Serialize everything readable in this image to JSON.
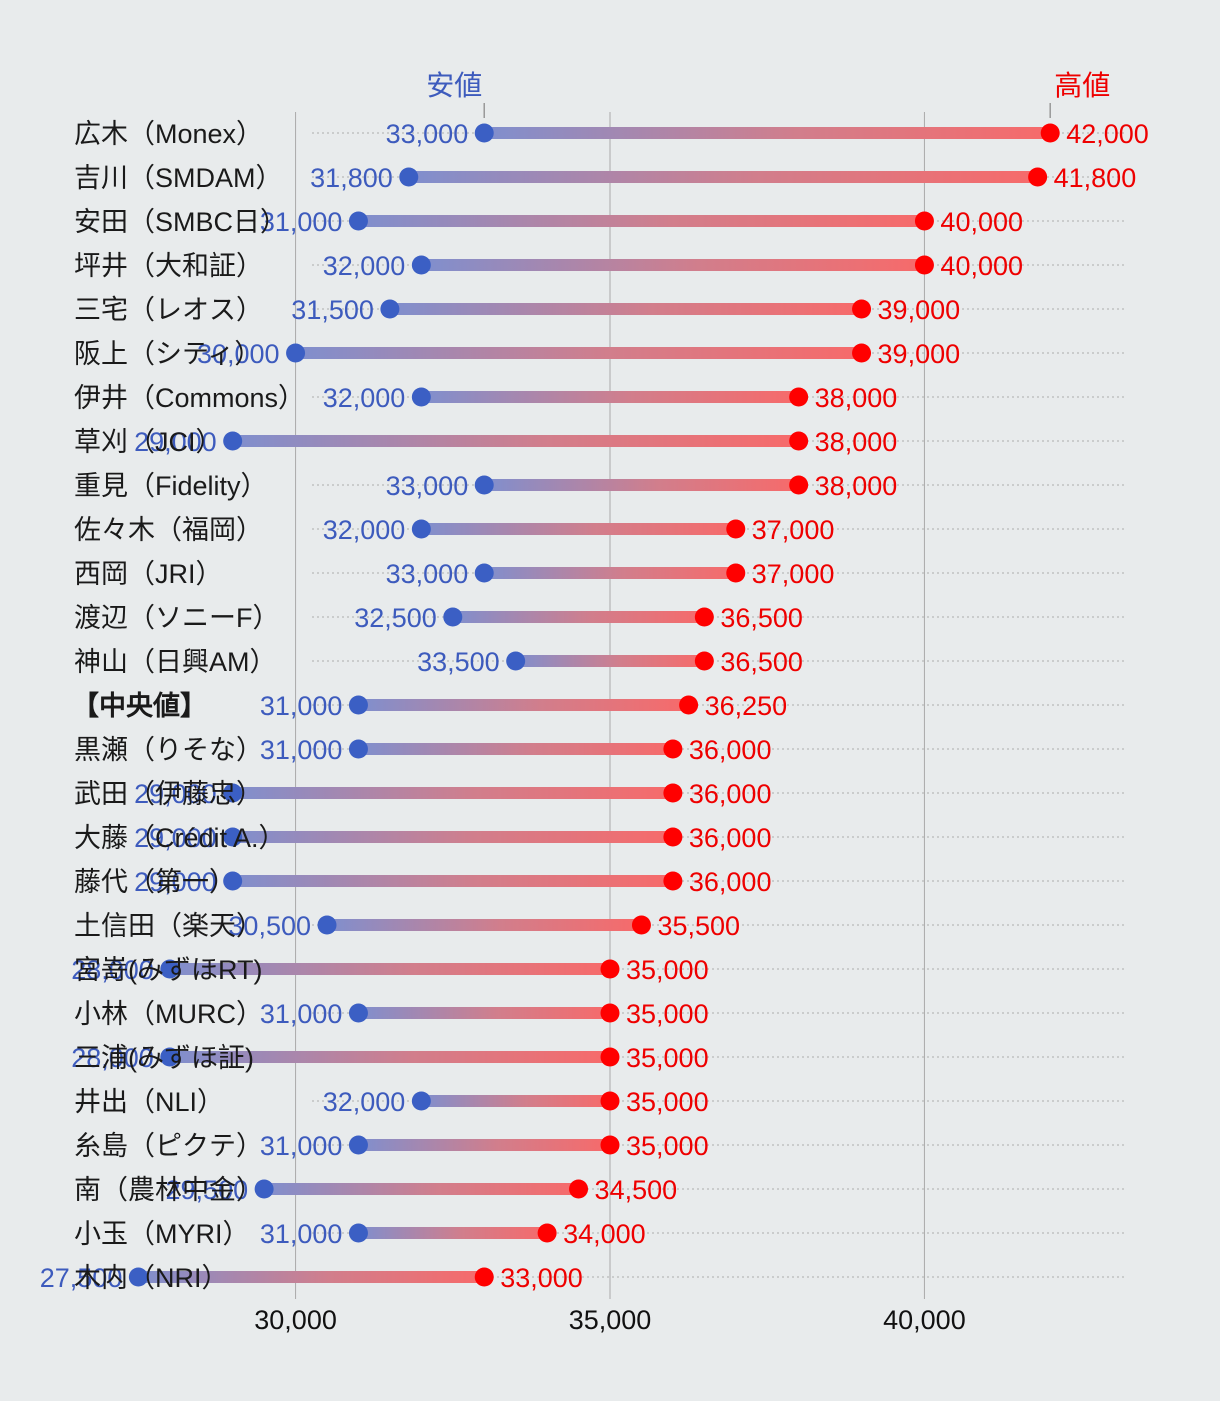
{
  "chart_data": {
    "type": "dumbbell",
    "title": "",
    "xlabel": "",
    "ylabel": "",
    "xlim": [
      25300,
      44700
    ],
    "xticks": [
      30000,
      35000,
      40000
    ],
    "xtick_labels": [
      "30,000",
      "35,000",
      "40,000"
    ],
    "grid": true,
    "legend": {
      "low": "安値",
      "high": "高値",
      "position": "top"
    },
    "colors": {
      "low": "#3b5fc4",
      "high": "#ff0000",
      "background": "#e8ebec",
      "grid": "#aaaaaa"
    },
    "rows": [
      {
        "label": "広木（Monex）",
        "low": 33000,
        "high": 42000,
        "low_label": "33,000",
        "high_label": "42,000"
      },
      {
        "label": "吉川（SMDAM）",
        "low": 31800,
        "high": 41800,
        "low_label": "31,800",
        "high_label": "41,800"
      },
      {
        "label": "安田（SMBC日）",
        "low": 31000,
        "high": 40000,
        "low_label": "31,000",
        "high_label": "40,000"
      },
      {
        "label": "坪井（大和証）",
        "low": 32000,
        "high": 40000,
        "low_label": "32,000",
        "high_label": "40,000"
      },
      {
        "label": "三宅（レオス）",
        "low": 31500,
        "high": 39000,
        "low_label": "31,500",
        "high_label": "39,000"
      },
      {
        "label": "阪上（シティ）",
        "low": 30000,
        "high": 39000,
        "low_label": "30,000",
        "high_label": "39,000"
      },
      {
        "label": "伊井（Commons）",
        "low": 32000,
        "high": 38000,
        "low_label": "32,000",
        "high_label": "38,000"
      },
      {
        "label": "草刈（JCI）",
        "low": 29000,
        "high": 38000,
        "low_label": "29,000",
        "high_label": "38,000"
      },
      {
        "label": "重見（Fidelity）",
        "low": 33000,
        "high": 38000,
        "low_label": "33,000",
        "high_label": "38,000"
      },
      {
        "label": "佐々木（福岡）",
        "low": 32000,
        "high": 37000,
        "low_label": "32,000",
        "high_label": "37,000"
      },
      {
        "label": "西岡（JRI）",
        "low": 33000,
        "high": 37000,
        "low_label": "33,000",
        "high_label": "37,000"
      },
      {
        "label": "渡辺（ソニーF）",
        "low": 32500,
        "high": 36500,
        "low_label": "32,500",
        "high_label": "36,500"
      },
      {
        "label": "神山（日興AM）",
        "low": 33500,
        "high": 36500,
        "low_label": "33,500",
        "high_label": "36,500"
      },
      {
        "label": "【中央値】",
        "low": 31000,
        "high": 36250,
        "low_label": "31,000",
        "high_label": "36,250",
        "median": true
      },
      {
        "label": "黒瀬（りそな）",
        "low": 31000,
        "high": 36000,
        "low_label": "31,000",
        "high_label": "36,000"
      },
      {
        "label": "武田（伊藤忠）",
        "low": 29000,
        "high": 36000,
        "low_label": "29,000",
        "high_label": "36,000"
      },
      {
        "label": "大藤（Crédit A.）",
        "low": 29000,
        "high": 36000,
        "low_label": "29,000",
        "high_label": "36,000"
      },
      {
        "label": "藤代（第一）",
        "low": 29000,
        "high": 36000,
        "low_label": "29,000",
        "high_label": "36,000"
      },
      {
        "label": "土信田（楽天）",
        "low": 30500,
        "high": 35500,
        "low_label": "30,500",
        "high_label": "35,500"
      },
      {
        "label": "宮嵜(みずほRT)",
        "low": 28000,
        "high": 35000,
        "low_label": "28,000",
        "high_label": "35,000"
      },
      {
        "label": "小林（MURC）",
        "low": 31000,
        "high": 35000,
        "low_label": "31,000",
        "high_label": "35,000"
      },
      {
        "label": "三浦(みずほ証)",
        "low": 28000,
        "high": 35000,
        "low_label": "28,000",
        "high_label": "35,000"
      },
      {
        "label": "井出（NLI）",
        "low": 32000,
        "high": 35000,
        "low_label": "32,000",
        "high_label": "35,000"
      },
      {
        "label": "糸島（ピクテ）",
        "low": 31000,
        "high": 35000,
        "low_label": "31,000",
        "high_label": "35,000"
      },
      {
        "label": "南（農林中金）",
        "low": 29500,
        "high": 34500,
        "low_label": "29,500",
        "high_label": "34,500"
      },
      {
        "label": "小玉（MYRI）",
        "low": 31000,
        "high": 34000,
        "low_label": "31,000",
        "high_label": "34,000"
      },
      {
        "label": "木内（NRI）",
        "low": 27500,
        "high": 33000,
        "low_label": "27,500",
        "high_label": "33,000"
      }
    ]
  }
}
